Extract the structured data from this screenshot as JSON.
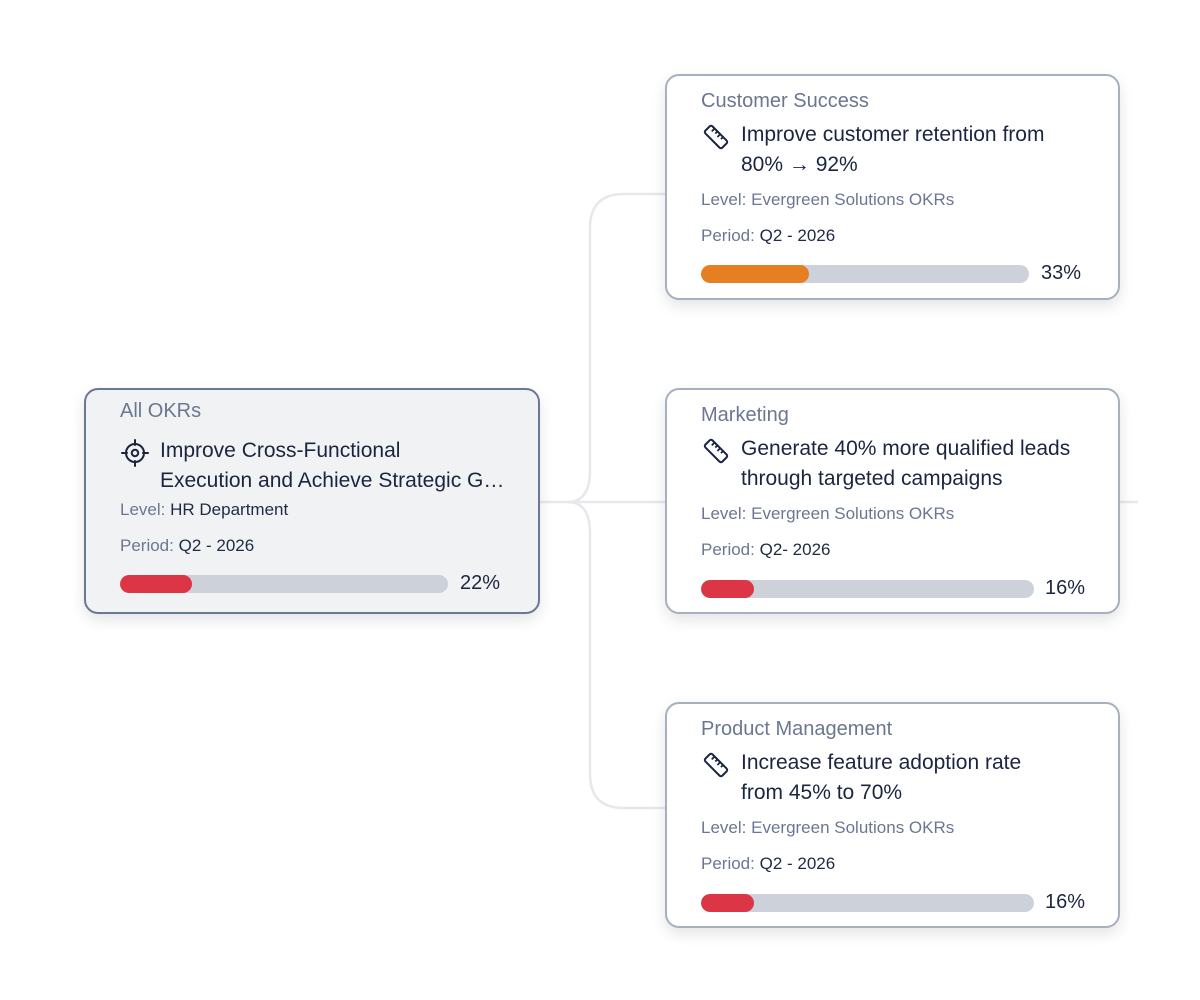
{
  "colors": {
    "connector": "#e6e8ec",
    "track": "#cdd2da",
    "red": "#dc3545",
    "orange": "#e67e22"
  },
  "root": {
    "group": "All OKRs",
    "icon": "target-icon",
    "title_line1": "Improve Cross-Functional",
    "title_line2": "Execution and Achieve Strategic G…",
    "level_label": "Level:",
    "level_value": "HR Department",
    "period_label": "Period:",
    "period_value": "Q2 - 2026",
    "progress": 22,
    "progress_text": "22%",
    "bar_color": "#dc3545"
  },
  "children": [
    {
      "group": "Customer Success",
      "icon": "ruler-icon",
      "title_line1": "Improve customer retention from",
      "title_line2": "80% → 92%",
      "level_label": "Level:",
      "level_value": "Evergreen Solutions OKRs",
      "period_label": "Period:",
      "period_value": "Q2 - 2026",
      "progress": 33,
      "progress_text": "33%",
      "bar_color": "#e67e22"
    },
    {
      "group": "Marketing",
      "icon": "ruler-icon",
      "title_line1": "Generate 40% more qualified leads",
      "title_line2": "through targeted campaigns",
      "level_label": "Level:",
      "level_value": "Evergreen Solutions OKRs",
      "period_label": "Period:",
      "period_value": "Q2- 2026",
      "progress": 16,
      "progress_text": "16%",
      "bar_color": "#dc3545"
    },
    {
      "group": "Product Management",
      "icon": "ruler-icon",
      "title_line1": "Increase feature adoption rate",
      "title_line2": "from 45% to 70%",
      "level_label": "Level:",
      "level_value": "Evergreen Solutions OKRs",
      "period_label": "Period:",
      "period_value": "Q2 - 2026",
      "progress": 16,
      "progress_text": "16%",
      "bar_color": "#dc3545"
    }
  ]
}
